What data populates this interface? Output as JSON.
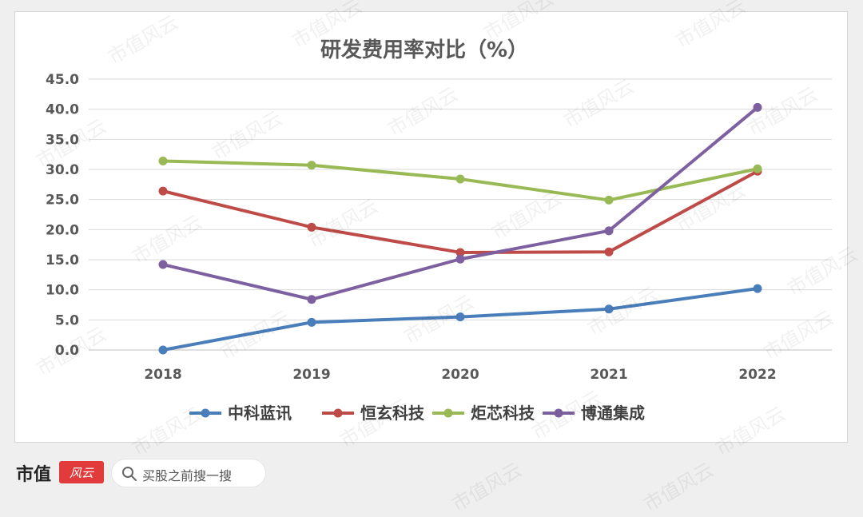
{
  "chart_data": {
    "type": "line",
    "title": "研发费用率对比（%）",
    "categories": [
      "2018",
      "2019",
      "2020",
      "2021",
      "2022"
    ],
    "ylim": [
      0,
      45
    ],
    "ytick_labels": [
      "0.0",
      "5.0",
      "10.0",
      "15.0",
      "20.0",
      "25.0",
      "30.0",
      "35.0",
      "40.0",
      "45.0"
    ],
    "grid": true,
    "legend_position": "bottom",
    "series": [
      {
        "name": "中科蓝讯",
        "color": "#4a7ebb",
        "values": [
          0.0,
          4.6,
          5.5,
          6.8,
          10.2
        ]
      },
      {
        "name": "恒玄科技",
        "color": "#be4b48",
        "values": [
          26.4,
          20.4,
          16.2,
          16.3,
          29.7
        ]
      },
      {
        "name": "炬芯科技",
        "color": "#98b954",
        "values": [
          31.4,
          30.7,
          28.4,
          24.9,
          30.1
        ]
      },
      {
        "name": "博通集成",
        "color": "#7d60a0",
        "values": [
          14.2,
          8.4,
          15.1,
          19.8,
          40.3
        ]
      }
    ]
  },
  "watermark_text": "市值风云",
  "footer": {
    "brand": "市值",
    "badge_text": "风云",
    "search_placeholder": "买股之前搜一搜",
    "search_icon": "search-icon"
  }
}
